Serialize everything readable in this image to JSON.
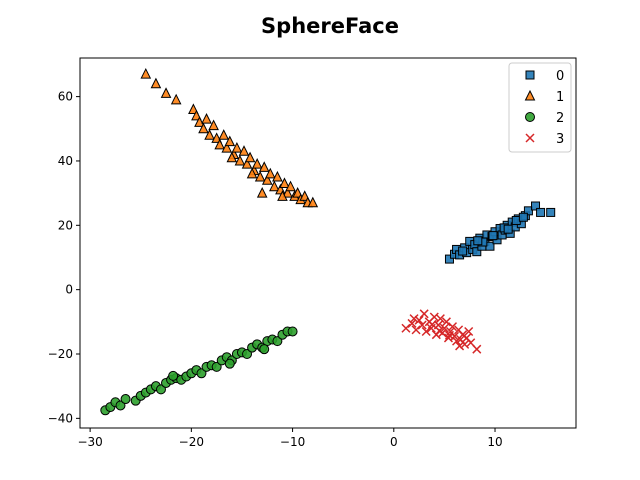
{
  "chart_data": {
    "type": "scatter",
    "title": "SphereFace",
    "xlabel": "",
    "ylabel": "",
    "xlim": [
      -31,
      18
    ],
    "ylim": [
      -43,
      72
    ],
    "xticks": [
      -30,
      -20,
      -10,
      0,
      10
    ],
    "xtick_labels": [
      "−30",
      "−20",
      "−10",
      "0",
      "10"
    ],
    "yticks": [
      -40,
      -20,
      0,
      20,
      40,
      60
    ],
    "ytick_labels": [
      "−40",
      "−20",
      "0",
      "20",
      "40",
      "60"
    ],
    "grid": false,
    "legend_position": "top-right",
    "series": [
      {
        "name": "0",
        "marker": "square",
        "color": "#1f77b4",
        "points": [
          [
            5.5,
            9.5
          ],
          [
            6.0,
            11.0
          ],
          [
            6.2,
            12.5
          ],
          [
            6.5,
            10.8
          ],
          [
            7.0,
            13.0
          ],
          [
            7.2,
            11.5
          ],
          [
            7.5,
            15.0
          ],
          [
            7.8,
            12.5
          ],
          [
            8.0,
            14.0
          ],
          [
            8.2,
            11.8
          ],
          [
            8.5,
            16.0
          ],
          [
            8.7,
            13.5
          ],
          [
            9.0,
            15.0
          ],
          [
            9.2,
            17.0
          ],
          [
            9.5,
            13.5
          ],
          [
            9.7,
            16.5
          ],
          [
            10.0,
            18.0
          ],
          [
            10.2,
            15.5
          ],
          [
            10.5,
            19.0
          ],
          [
            10.7,
            17.0
          ],
          [
            11.0,
            18.5
          ],
          [
            11.2,
            20.0
          ],
          [
            11.5,
            17.5
          ],
          [
            11.7,
            21.0
          ],
          [
            12.0,
            19.5
          ],
          [
            12.3,
            22.0
          ],
          [
            12.6,
            20.5
          ],
          [
            13.0,
            23.0
          ],
          [
            13.3,
            24.5
          ],
          [
            14.0,
            26.0
          ],
          [
            14.5,
            24.0
          ],
          [
            15.5,
            24.0
          ],
          [
            8.8,
            14.8
          ],
          [
            9.8,
            16.8
          ],
          [
            10.9,
            19.2
          ],
          [
            12.1,
            21.5
          ],
          [
            6.8,
            12.0
          ],
          [
            8.3,
            15.2
          ],
          [
            11.3,
            18.8
          ],
          [
            12.8,
            22.5
          ]
        ]
      },
      {
        "name": "1",
        "marker": "triangle",
        "color": "#ff7f0e",
        "points": [
          [
            -24.5,
            67
          ],
          [
            -23.5,
            64
          ],
          [
            -22.5,
            61
          ],
          [
            -21.5,
            59
          ],
          [
            -19.8,
            56
          ],
          [
            -19.5,
            54
          ],
          [
            -19.2,
            52
          ],
          [
            -18.8,
            50
          ],
          [
            -18.5,
            53
          ],
          [
            -18.2,
            48
          ],
          [
            -17.8,
            51
          ],
          [
            -17.5,
            47
          ],
          [
            -17.2,
            45
          ],
          [
            -16.8,
            48
          ],
          [
            -16.5,
            44
          ],
          [
            -16.2,
            46
          ],
          [
            -15.8,
            42
          ],
          [
            -15.5,
            44
          ],
          [
            -15.2,
            40
          ],
          [
            -14.8,
            43
          ],
          [
            -14.5,
            39
          ],
          [
            -14.2,
            41
          ],
          [
            -13.8,
            37
          ],
          [
            -13.5,
            39
          ],
          [
            -13.2,
            35
          ],
          [
            -12.8,
            38
          ],
          [
            -12.5,
            34
          ],
          [
            -12.2,
            36
          ],
          [
            -11.8,
            32
          ],
          [
            -11.5,
            35
          ],
          [
            -11.2,
            31
          ],
          [
            -10.8,
            33
          ],
          [
            -10.5,
            30
          ],
          [
            -10.2,
            32
          ],
          [
            -9.8,
            29
          ],
          [
            -9.5,
            30
          ],
          [
            -9.2,
            28
          ],
          [
            -8.8,
            29
          ],
          [
            -8.5,
            27
          ],
          [
            -8.0,
            27
          ],
          [
            -13.0,
            30
          ],
          [
            -11.0,
            29
          ],
          [
            -16.0,
            41
          ],
          [
            -14.0,
            36
          ]
        ]
      },
      {
        "name": "2",
        "marker": "circle",
        "color": "#2ca02c",
        "points": [
          [
            -28.5,
            -37.5
          ],
          [
            -28.0,
            -36.5
          ],
          [
            -27.5,
            -35
          ],
          [
            -27.0,
            -36
          ],
          [
            -26.5,
            -34
          ],
          [
            -25.5,
            -34.5
          ],
          [
            -25.0,
            -33
          ],
          [
            -24.5,
            -32
          ],
          [
            -24.0,
            -31
          ],
          [
            -23.5,
            -30
          ],
          [
            -23.0,
            -31
          ],
          [
            -22.5,
            -29
          ],
          [
            -22.0,
            -28
          ],
          [
            -21.5,
            -27.5
          ],
          [
            -21.0,
            -28
          ],
          [
            -20.5,
            -27
          ],
          [
            -20.0,
            -26
          ],
          [
            -19.5,
            -25
          ],
          [
            -19.0,
            -26
          ],
          [
            -18.5,
            -24
          ],
          [
            -18.0,
            -23.5
          ],
          [
            -17.5,
            -24
          ],
          [
            -17.0,
            -22
          ],
          [
            -16.5,
            -21
          ],
          [
            -16.0,
            -22
          ],
          [
            -15.5,
            -20
          ],
          [
            -15.0,
            -19.5
          ],
          [
            -14.5,
            -20
          ],
          [
            -14.0,
            -18
          ],
          [
            -13.5,
            -17
          ],
          [
            -13.0,
            -18
          ],
          [
            -12.5,
            -16
          ],
          [
            -12.0,
            -15.5
          ],
          [
            -11.5,
            -16
          ],
          [
            -11.0,
            -14
          ],
          [
            -10.5,
            -13
          ],
          [
            -10.0,
            -13
          ],
          [
            -16.2,
            -23
          ],
          [
            -12.8,
            -18.5
          ],
          [
            -21.8,
            -26.8
          ]
        ]
      },
      {
        "name": "3",
        "marker": "x",
        "color": "#d62728",
        "points": [
          [
            1.2,
            -12
          ],
          [
            1.8,
            -10.5
          ],
          [
            2.2,
            -12.5
          ],
          [
            2.5,
            -9.5
          ],
          [
            2.8,
            -11
          ],
          [
            3.0,
            -7.5
          ],
          [
            3.2,
            -13
          ],
          [
            3.5,
            -10
          ],
          [
            3.7,
            -12
          ],
          [
            4.0,
            -8.5
          ],
          [
            4.2,
            -14
          ],
          [
            4.4,
            -11
          ],
          [
            4.6,
            -9
          ],
          [
            4.8,
            -13.5
          ],
          [
            5.0,
            -12
          ],
          [
            5.2,
            -10
          ],
          [
            5.4,
            -15
          ],
          [
            5.6,
            -13
          ],
          [
            5.8,
            -11.5
          ],
          [
            6.0,
            -14.5
          ],
          [
            6.2,
            -16
          ],
          [
            6.4,
            -12.5
          ],
          [
            6.6,
            -15.5
          ],
          [
            6.8,
            -14
          ],
          [
            7.0,
            -17
          ],
          [
            7.2,
            -15
          ],
          [
            7.4,
            -13
          ],
          [
            7.6,
            -16.5
          ],
          [
            8.2,
            -18.5
          ],
          [
            3.8,
            -10.8
          ],
          [
            4.5,
            -12.8
          ],
          [
            5.5,
            -14.2
          ],
          [
            2.0,
            -9.0
          ],
          [
            6.5,
            -17.5
          ]
        ]
      }
    ]
  }
}
